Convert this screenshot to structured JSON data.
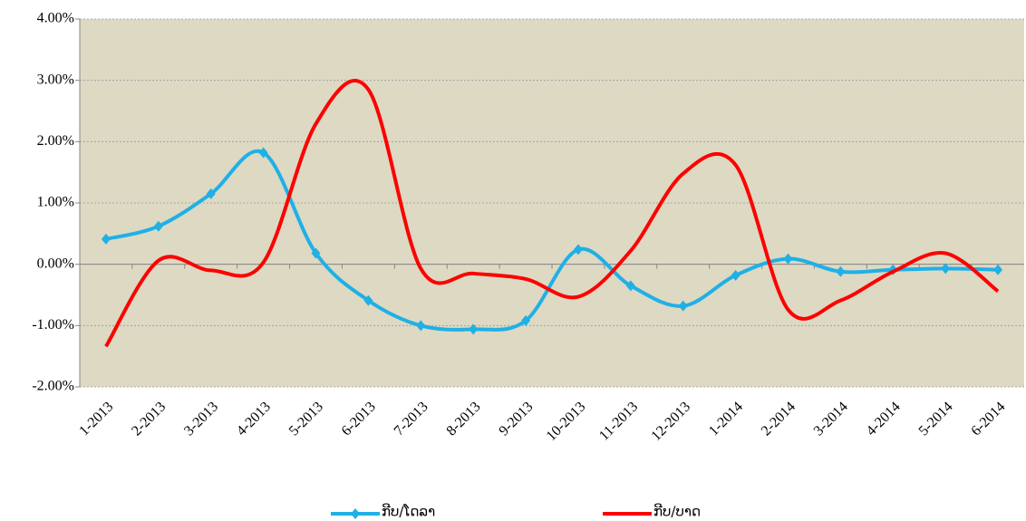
{
  "chart_data": {
    "type": "line",
    "categories": [
      "1-2013",
      "2-2013",
      "3-2013",
      "4-2013",
      "5-2013",
      "6-2013",
      "7-2013",
      "8-2013",
      "9-2013",
      "10-2013",
      "11-2013",
      "12-2013",
      "1-2014",
      "2-2014",
      "3-2014",
      "4-2014",
      "5-2014",
      "6-2014"
    ],
    "series": [
      {
        "name": "ກີບ/ໂດລາ",
        "color": "#1fb0e6",
        "marker": true,
        "values": [
          0.41,
          0.62,
          1.15,
          1.82,
          0.18,
          -0.59,
          -1.0,
          -1.06,
          -0.92,
          0.24,
          -0.35,
          -0.68,
          -0.18,
          0.09,
          -0.12,
          -0.09,
          -0.07,
          -0.09
        ]
      },
      {
        "name": "ກີບ/ບາດ",
        "color": "#ff0000",
        "marker": false,
        "values": [
          -1.34,
          0.06,
          -0.1,
          0.03,
          2.29,
          2.85,
          -0.07,
          -0.15,
          -0.24,
          -0.53,
          0.22,
          1.48,
          1.62,
          -0.74,
          -0.59,
          -0.12,
          0.18,
          -0.44
        ]
      }
    ],
    "ylim": [
      -2,
      4
    ],
    "yticks": [
      {
        "value": -2,
        "label": "-2.00%"
      },
      {
        "value": -1,
        "label": "-1.00%"
      },
      {
        "value": 0,
        "label": "0.00%"
      },
      {
        "value": 1,
        "label": "1.00%"
      },
      {
        "value": 2,
        "label": "2.00%"
      },
      {
        "value": 3,
        "label": "3.00%"
      },
      {
        "value": 4,
        "label": "4.00%"
      }
    ],
    "grid": true,
    "smooth": true,
    "legend": "bottom"
  }
}
